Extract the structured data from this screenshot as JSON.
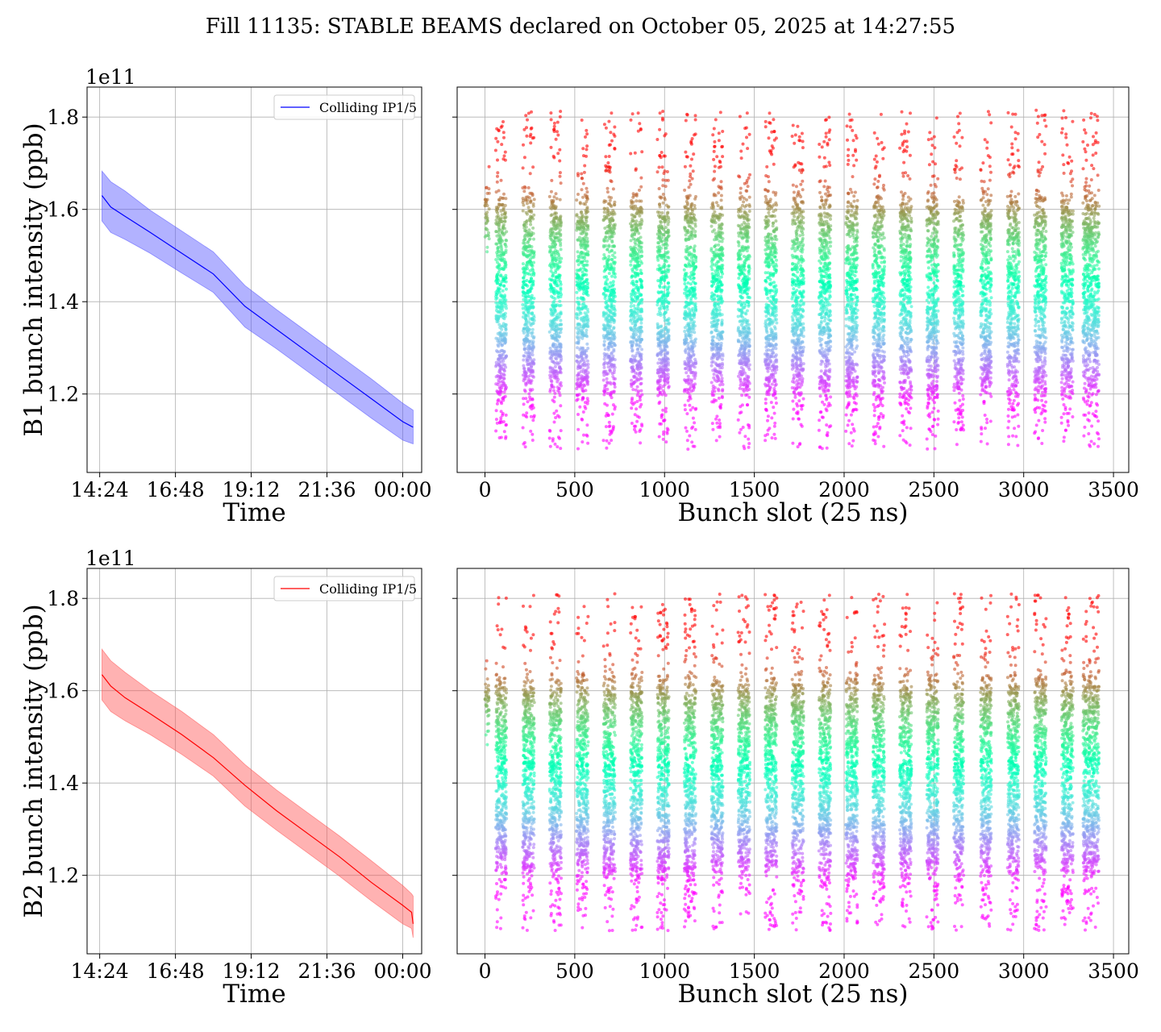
{
  "title": "Fill 11135: STABLE BEAMS declared on October 05, 2025 at 14:27:55",
  "colors": {
    "beam1": "#0000ff",
    "beam1_band": "#5555ff",
    "beam2": "#ff0000",
    "beam2_band": "#ff5555",
    "grid": "#b0b0b0"
  },
  "chart_data": [
    {
      "id": "b1-time",
      "type": "line",
      "ylabel": "B1 bunch intensity (ppb)",
      "xlabel": "Time",
      "y_offset_label": "1e11",
      "xticks": [
        "14:24",
        "16:48",
        "19:12",
        "21:36",
        "00:00"
      ],
      "xtick_hours": [
        14.4,
        16.8,
        19.2,
        21.6,
        24.0
      ],
      "yticks": [
        "1.2",
        "1.4",
        "1.6",
        "1.8"
      ],
      "ytick_values": [
        1.2,
        1.4,
        1.6,
        1.8
      ],
      "xlim_hours": [
        14.0,
        24.6
      ],
      "ylim": [
        1.03,
        1.865
      ],
      "legend": "Colliding IP1/5",
      "legend_position": "upper right",
      "grid": true,
      "series": [
        {
          "name": "Colliding IP1/5",
          "time_hours": [
            14.47,
            14.75,
            15.2,
            16.0,
            17.0,
            18.0,
            19.0,
            20.0,
            21.0,
            22.0,
            23.0,
            24.0,
            24.33
          ],
          "mean": [
            1.63,
            1.605,
            1.585,
            1.55,
            1.505,
            1.46,
            1.39,
            1.34,
            1.29,
            1.24,
            1.19,
            1.14,
            1.128
          ],
          "lower": [
            1.575,
            1.55,
            1.535,
            1.505,
            1.462,
            1.42,
            1.345,
            1.298,
            1.248,
            1.198,
            1.148,
            1.1,
            1.092
          ],
          "upper": [
            1.683,
            1.66,
            1.64,
            1.598,
            1.553,
            1.508,
            1.435,
            1.383,
            1.333,
            1.283,
            1.233,
            1.18,
            1.165
          ]
        }
      ]
    },
    {
      "id": "b1-slot",
      "type": "scatter",
      "xlabel": "Bunch slot (25 ns)",
      "xticks": [
        "0",
        "500",
        "1000",
        "1500",
        "2000",
        "2500",
        "3000",
        "3500"
      ],
      "xtick_values": [
        0,
        500,
        1000,
        1500,
        2000,
        2500,
        3000,
        3500
      ],
      "ytick_values": [
        1.2,
        1.4,
        1.6,
        1.8
      ],
      "xlim": [
        -155,
        3585
      ],
      "ylim": [
        1.03,
        1.865
      ],
      "grid": true,
      "colormap": "rainbow (red = low intensity, violet = high intensity)",
      "point_count": "~11000",
      "train_starts": [
        0,
        60,
        210,
        360,
        510,
        660,
        810,
        960,
        1110,
        1260,
        1410,
        1560,
        1710,
        1860,
        2010,
        2160,
        2310,
        2460,
        2610,
        2760,
        2910,
        3060,
        3210,
        3330
      ],
      "train_ends": [
        24,
        120,
        275,
        425,
        575,
        725,
        875,
        1025,
        1175,
        1325,
        1475,
        1625,
        1775,
        1925,
        2075,
        2225,
        2375,
        2525,
        2665,
        2820,
        2975,
        3125,
        3275,
        3420
      ],
      "y_range_min": 1.08,
      "y_range_max": 1.815
    },
    {
      "id": "b2-time",
      "type": "line",
      "ylabel": "B2 bunch intensity (ppb)",
      "xlabel": "Time",
      "y_offset_label": "1e11",
      "xticks": [
        "14:24",
        "16:48",
        "19:12",
        "21:36",
        "00:00"
      ],
      "xtick_hours": [
        14.4,
        16.8,
        19.2,
        21.6,
        24.0
      ],
      "yticks": [
        "1.2",
        "1.4",
        "1.6",
        "1.8"
      ],
      "ytick_values": [
        1.2,
        1.4,
        1.6,
        1.8
      ],
      "xlim_hours": [
        14.0,
        24.6
      ],
      "ylim": [
        1.03,
        1.865
      ],
      "legend": "Colliding IP1/5",
      "legend_position": "upper right",
      "grid": true,
      "series": [
        {
          "name": "Colliding IP1/5",
          "time_hours": [
            14.47,
            14.75,
            15.2,
            16.0,
            17.0,
            18.0,
            19.0,
            20.0,
            21.0,
            22.0,
            23.0,
            24.0,
            24.28,
            24.33
          ],
          "mean": [
            1.635,
            1.61,
            1.585,
            1.55,
            1.505,
            1.455,
            1.395,
            1.34,
            1.29,
            1.24,
            1.185,
            1.135,
            1.12,
            1.095
          ],
          "lower": [
            1.58,
            1.555,
            1.535,
            1.505,
            1.462,
            1.415,
            1.35,
            1.298,
            1.248,
            1.198,
            1.145,
            1.095,
            1.085,
            1.065
          ],
          "upper": [
            1.69,
            1.665,
            1.64,
            1.6,
            1.555,
            1.505,
            1.44,
            1.385,
            1.335,
            1.285,
            1.232,
            1.178,
            1.16,
            1.155
          ]
        }
      ]
    },
    {
      "id": "b2-slot",
      "type": "scatter",
      "xlabel": "Bunch slot (25 ns)",
      "xticks": [
        "0",
        "500",
        "1000",
        "1500",
        "2000",
        "2500",
        "3000",
        "3500"
      ],
      "xtick_values": [
        0,
        500,
        1000,
        1500,
        2000,
        2500,
        3000,
        3500
      ],
      "ytick_values": [
        1.2,
        1.4,
        1.6,
        1.8
      ],
      "xlim": [
        -155,
        3585
      ],
      "ylim": [
        1.03,
        1.865
      ],
      "grid": true,
      "colormap": "rainbow (red = low intensity, violet = high intensity)",
      "point_count": "~11000",
      "train_starts": [
        0,
        60,
        210,
        360,
        510,
        660,
        810,
        960,
        1110,
        1260,
        1410,
        1560,
        1710,
        1860,
        2010,
        2160,
        2310,
        2460,
        2610,
        2760,
        2910,
        3060,
        3210,
        3330
      ],
      "train_ends": [
        24,
        120,
        275,
        425,
        575,
        725,
        875,
        1025,
        1175,
        1325,
        1475,
        1625,
        1775,
        1925,
        2075,
        2225,
        2375,
        2525,
        2665,
        2820,
        2975,
        3125,
        3275,
        3420
      ],
      "y_range_min": 1.08,
      "y_range_max": 1.81
    }
  ]
}
